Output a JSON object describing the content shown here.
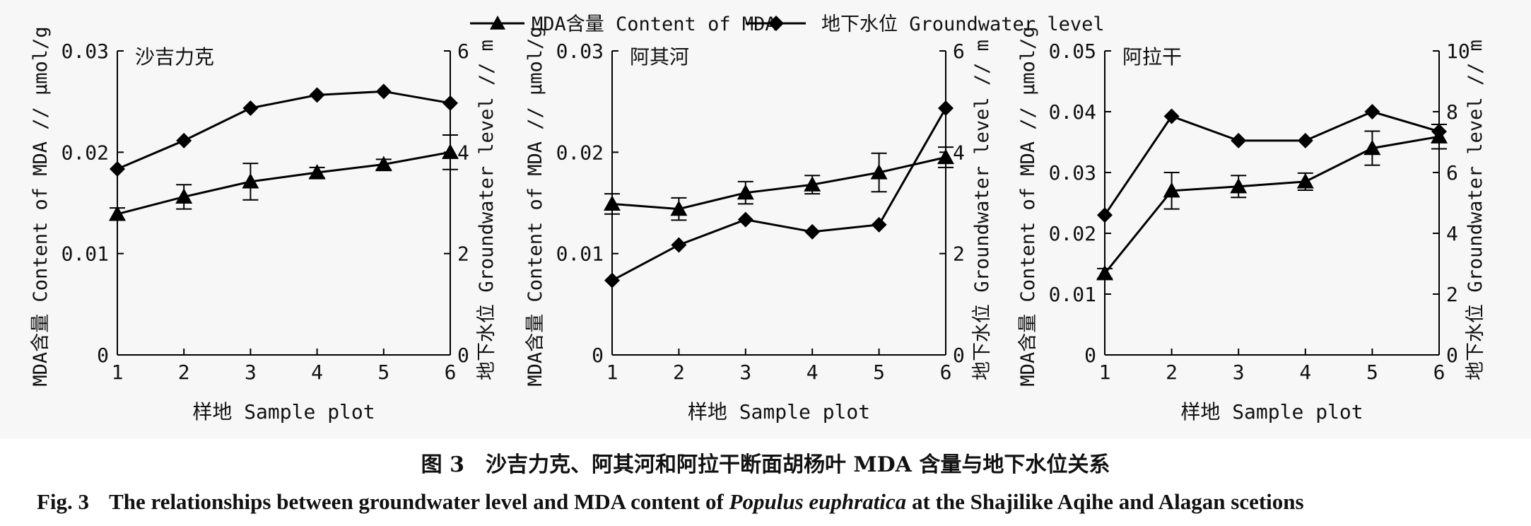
{
  "legend": {
    "mda": "MDA含量 Content of MDA",
    "gw": "地下水位 Groundwater level"
  },
  "caption": {
    "zh_label": "图 3",
    "zh_text": "沙吉力克、阿其河和阿拉干断面胡杨叶 MDA 含量与地下水位关系",
    "en_label": "Fig. 3",
    "en_text_before": "The relationships between groundwater level and MDA content of",
    "en_species": "Populus euphratica",
    "en_text_after": "at the Shajilike Aqihe and Alagan scetions"
  },
  "chart_data": [
    {
      "type": "line",
      "title": "沙吉力克",
      "xlabel": "样地 Sample plot",
      "ylabel": "MDA含量 Content of MDA // μmol/g",
      "y2label": "地下水位 Groundwater level // m",
      "x": [
        1,
        2,
        3,
        4,
        5,
        6
      ],
      "x_ticks": [
        "1",
        "2",
        "3",
        "4",
        "5",
        "6"
      ],
      "ylim": [
        0,
        0.03
      ],
      "y_ticks": [
        "0",
        "0.01",
        "0.02",
        "0.03"
      ],
      "y2lim": [
        0,
        6
      ],
      "y2_ticks": [
        "0",
        "2",
        "4",
        "6"
      ],
      "grid": false,
      "series": [
        {
          "name": "MDA含量 Content of MDA",
          "axis": "left",
          "marker": "triangle",
          "values": [
            0.0139,
            0.0156,
            0.0171,
            0.018,
            0.0188,
            0.02
          ],
          "errors": [
            0.0006,
            0.0012,
            0.0018,
            0.0005,
            0.0005,
            0.0017
          ]
        },
        {
          "name": "地下水位 Groundwater level",
          "axis": "right",
          "marker": "diamond",
          "values": [
            3.67,
            4.23,
            4.87,
            5.13,
            5.2,
            4.97
          ]
        }
      ]
    },
    {
      "type": "line",
      "title": "阿其河",
      "xlabel": "样地 Sample plot",
      "ylabel": "MDA含量 Content of MDA // μmol/g",
      "y2label": "地下水位 Groundwater level // m",
      "x": [
        1,
        2,
        3,
        4,
        5,
        6
      ],
      "x_ticks": [
        "1",
        "2",
        "3",
        "4",
        "5",
        "6"
      ],
      "ylim": [
        0,
        0.03
      ],
      "y_ticks": [
        "0",
        "0.01",
        "0.02",
        "0.03"
      ],
      "y2lim": [
        0,
        6
      ],
      "y2_ticks": [
        "0",
        "2",
        "4",
        "6"
      ],
      "grid": false,
      "series": [
        {
          "name": "MDA含量 Content of MDA",
          "axis": "left",
          "marker": "triangle",
          "values": [
            0.0149,
            0.0144,
            0.016,
            0.0168,
            0.018,
            0.0195
          ],
          "errors": [
            0.001,
            0.0011,
            0.0011,
            0.0009,
            0.0019,
            0.001
          ]
        },
        {
          "name": "地下水位 Groundwater level",
          "axis": "right",
          "marker": "diamond",
          "values": [
            1.47,
            2.17,
            2.67,
            2.43,
            2.57,
            4.87
          ]
        }
      ]
    },
    {
      "type": "line",
      "title": "阿拉干",
      "xlabel": "样地 Sample plot",
      "ylabel": "MDA含量 Content of MDA // μmol/g",
      "y2label": "地下水位 Groundwater level // m",
      "x": [
        1,
        2,
        3,
        4,
        5,
        6
      ],
      "x_ticks": [
        "1",
        "2",
        "3",
        "4",
        "5",
        "6"
      ],
      "ylim": [
        0,
        0.05
      ],
      "y_ticks": [
        "0",
        "0.01",
        "0.02",
        "0.03",
        "0.04",
        "0.05"
      ],
      "y2lim": [
        0,
        10
      ],
      "y2_ticks": [
        "0",
        "2",
        "4",
        "6",
        "8",
        "10"
      ],
      "grid": false,
      "series": [
        {
          "name": "MDA含量 Content of MDA",
          "axis": "left",
          "marker": "triangle",
          "values": [
            0.0134,
            0.027,
            0.0277,
            0.0285,
            0.034,
            0.0359
          ],
          "errors": [
            0.0008,
            0.003,
            0.0018,
            0.0014,
            0.0028,
            0.002
          ]
        },
        {
          "name": "地下水位 Groundwater level",
          "axis": "right",
          "marker": "diamond",
          "values": [
            4.6,
            7.85,
            7.05,
            7.05,
            8.0,
            7.35
          ]
        }
      ]
    }
  ]
}
